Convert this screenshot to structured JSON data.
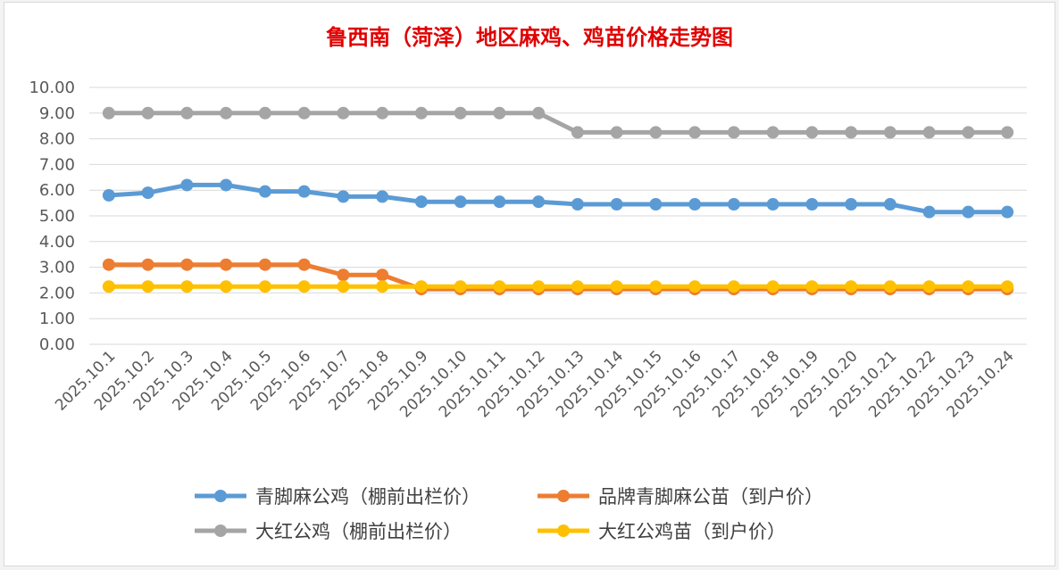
{
  "chart_data": {
    "type": "line",
    "title": "鲁西南（菏泽）地区麻鸡、鸡苗价格走势图",
    "xlabel": "",
    "ylabel": "",
    "ylim": [
      0,
      10
    ],
    "ytick_labels": [
      "0.00",
      "1.00",
      "2.00",
      "3.00",
      "4.00",
      "5.00",
      "6.00",
      "7.00",
      "8.00",
      "9.00",
      "10.00"
    ],
    "grid": true,
    "legend_position": "bottom",
    "categories": [
      "2025.10.1",
      "2025.10.2",
      "2025.10.3",
      "2025.10.4",
      "2025.10.5",
      "2025.10.6",
      "2025.10.7",
      "2025.10.8",
      "2025.10.9",
      "2025.10.10",
      "2025.10.11",
      "2025.10.12",
      "2025.10.13",
      "2025.10.14",
      "2025.10.15",
      "2025.10.16",
      "2025.10.17",
      "2025.10.18",
      "2025.10.19",
      "2025.10.20",
      "2025.10.21",
      "2025.10.22",
      "2025.10.23",
      "2025.10.24"
    ],
    "series": [
      {
        "name": "青脚麻公鸡（棚前出栏价）",
        "color": "#5b9bd5",
        "values": [
          5.8,
          5.9,
          6.2,
          6.2,
          5.95,
          5.95,
          5.75,
          5.75,
          5.55,
          5.55,
          5.55,
          5.55,
          5.45,
          5.45,
          5.45,
          5.45,
          5.45,
          5.45,
          5.45,
          5.45,
          5.45,
          5.15,
          5.15,
          5.15
        ]
      },
      {
        "name": "品牌青脚麻公苗（到户价）",
        "color": "#ed7d31",
        "values": [
          3.1,
          3.1,
          3.1,
          3.1,
          3.1,
          3.1,
          2.7,
          2.7,
          2.15,
          2.15,
          2.15,
          2.15,
          2.15,
          2.15,
          2.15,
          2.15,
          2.15,
          2.15,
          2.15,
          2.15,
          2.15,
          2.15,
          2.15,
          2.15
        ]
      },
      {
        "name": "大红公鸡（棚前出栏价）",
        "color": "#a5a5a5",
        "values": [
          9.0,
          9.0,
          9.0,
          9.0,
          9.0,
          9.0,
          9.0,
          9.0,
          9.0,
          9.0,
          9.0,
          9.0,
          8.25,
          8.25,
          8.25,
          8.25,
          8.25,
          8.25,
          8.25,
          8.25,
          8.25,
          8.25,
          8.25,
          8.25
        ]
      },
      {
        "name": "大红公鸡苗（到户价）",
        "color": "#ffc000",
        "values": [
          2.25,
          2.25,
          2.25,
          2.25,
          2.25,
          2.25,
          2.25,
          2.25,
          2.25,
          2.25,
          2.25,
          2.25,
          2.25,
          2.25,
          2.25,
          2.25,
          2.25,
          2.25,
          2.25,
          2.25,
          2.25,
          2.25,
          2.25,
          2.25
        ]
      }
    ],
    "legend_order": [
      0,
      1,
      2,
      3
    ]
  }
}
